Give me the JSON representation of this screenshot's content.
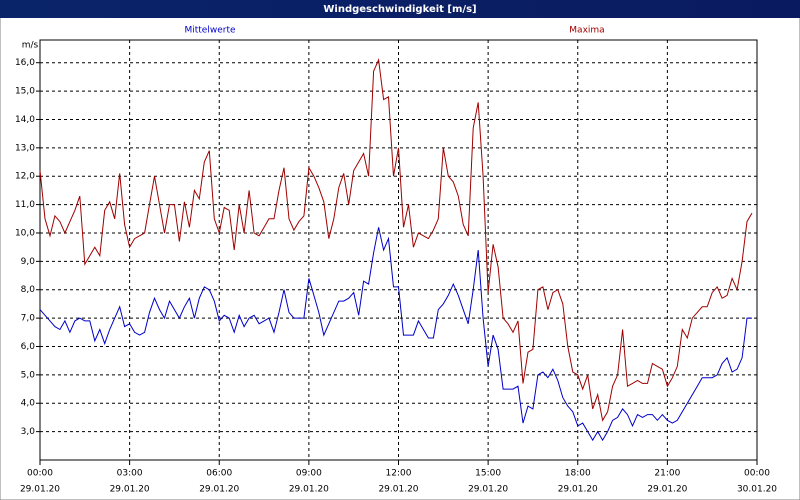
{
  "chart_data": {
    "type": "line",
    "title": "Windgeschwindigkeit [m/s]",
    "y_unit": "m/s",
    "x": [
      0,
      10,
      20,
      30,
      40,
      50,
      60,
      70,
      80,
      90,
      100,
      110,
      120,
      130,
      140,
      150,
      160,
      170,
      180,
      190,
      200,
      210,
      220,
      230,
      240,
      250,
      260,
      270,
      280,
      290,
      300,
      310,
      320,
      330,
      340,
      350,
      360,
      370,
      380,
      390,
      400,
      410,
      420,
      430,
      440,
      450,
      460,
      470,
      480,
      490,
      500,
      510,
      520,
      530,
      540,
      550,
      560,
      570,
      580,
      590,
      600,
      610,
      620,
      630,
      640,
      650,
      660,
      670,
      680,
      690,
      700,
      710,
      720,
      730,
      740,
      750,
      760,
      770,
      780,
      790,
      800,
      810,
      820,
      830,
      840,
      850,
      860,
      870,
      880,
      890,
      900,
      910,
      920,
      930,
      940,
      950,
      960,
      970,
      980,
      990,
      1000,
      1010,
      1020,
      1030,
      1040,
      1050,
      1060,
      1070,
      1080,
      1090,
      1100,
      1110,
      1120,
      1130,
      1140,
      1150,
      1160,
      1170,
      1180,
      1190,
      1200,
      1210,
      1220,
      1230,
      1240,
      1250,
      1260,
      1270,
      1280,
      1290,
      1300,
      1310,
      1320,
      1330,
      1340,
      1350,
      1360,
      1370,
      1380,
      1390,
      1400,
      1410,
      1420,
      1430
    ],
    "series": [
      {
        "name": "Mittelwerte",
        "color": "#0000c8",
        "values": [
          7.3,
          7.1,
          6.9,
          6.7,
          6.6,
          6.9,
          6.5,
          6.9,
          7.0,
          6.9,
          6.9,
          6.2,
          6.6,
          6.1,
          6.6,
          7.0,
          7.4,
          6.7,
          6.8,
          6.5,
          6.4,
          6.5,
          7.2,
          7.7,
          7.3,
          7.0,
          7.6,
          7.3,
          7.0,
          7.4,
          7.7,
          7.0,
          7.7,
          8.1,
          8.0,
          7.6,
          6.9,
          7.1,
          7.0,
          6.5,
          7.1,
          6.7,
          7.0,
          7.1,
          6.8,
          6.9,
          7.0,
          6.5,
          7.2,
          8.0,
          7.2,
          7.0,
          7.0,
          7.0,
          8.4,
          7.8,
          7.2,
          6.4,
          6.8,
          7.2,
          7.6,
          7.6,
          7.7,
          7.9,
          7.1,
          8.3,
          8.2,
          9.3,
          10.2,
          9.4,
          9.8,
          8.1,
          8.1,
          6.4,
          6.4,
          6.4,
          6.9,
          6.6,
          6.3,
          6.3,
          7.3,
          7.5,
          7.8,
          8.2,
          7.8,
          7.3,
          6.8,
          8.0,
          9.4,
          7.0,
          5.3,
          6.4,
          5.9,
          4.5,
          4.5,
          4.5,
          4.6,
          3.3,
          3.9,
          3.8,
          5.0,
          5.1,
          4.9,
          5.2,
          4.8,
          4.2,
          3.9,
          3.7,
          3.2,
          3.3,
          3.0,
          2.7,
          3.0,
          2.7,
          3.0,
          3.4,
          3.5,
          3.8,
          3.6,
          3.2,
          3.6,
          3.5,
          3.6,
          3.6,
          3.4,
          3.6,
          3.4,
          3.3,
          3.4,
          3.7,
          4.0,
          4.3,
          4.6,
          4.9,
          4.9,
          4.9,
          5.0,
          5.4,
          5.6,
          5.1,
          5.2,
          5.6,
          7.0,
          7.0
        ]
      },
      {
        "name": "Maxima",
        "color": "#a00000",
        "values": [
          12.2,
          10.5,
          9.9,
          10.6,
          10.4,
          10.0,
          10.4,
          10.8,
          11.3,
          8.9,
          9.2,
          9.5,
          9.2,
          10.8,
          11.1,
          10.5,
          12.1,
          10.3,
          9.5,
          9.8,
          9.9,
          10.0,
          11.0,
          12.0,
          11.0,
          10.0,
          11.0,
          11.0,
          9.7,
          11.1,
          10.2,
          11.5,
          11.2,
          12.5,
          12.9,
          10.5,
          10.0,
          10.9,
          10.8,
          9.4,
          11.0,
          10.0,
          11.5,
          10.0,
          9.9,
          10.2,
          10.5,
          10.5,
          11.5,
          12.3,
          10.5,
          10.1,
          10.4,
          10.6,
          12.3,
          12.0,
          11.6,
          11.1,
          9.8,
          10.5,
          11.6,
          12.1,
          11.0,
          12.2,
          12.5,
          12.8,
          12.0,
          15.7,
          16.1,
          14.7,
          14.8,
          12.0,
          13.0,
          10.2,
          11.0,
          9.5,
          10.0,
          9.9,
          9.8,
          10.1,
          10.5,
          13.0,
          12.0,
          11.8,
          11.3,
          10.3,
          9.9,
          13.7,
          14.6,
          12.0,
          7.9,
          9.6,
          8.8,
          7.0,
          6.8,
          6.5,
          6.9,
          4.7,
          5.8,
          5.9,
          8.0,
          8.1,
          7.3,
          7.9,
          8.0,
          7.5,
          6.0,
          5.1,
          5.0,
          4.5,
          5.0,
          3.8,
          4.3,
          3.4,
          3.7,
          4.6,
          5.0,
          6.6,
          4.6,
          4.7,
          4.8,
          4.7,
          4.7,
          5.4,
          5.3,
          5.2,
          4.6,
          4.9,
          5.3,
          6.6,
          6.3,
          7.0,
          7.2,
          7.4,
          7.4,
          7.9,
          8.1,
          7.7,
          7.8,
          8.4,
          8.0,
          9.0,
          10.4,
          10.7
        ]
      }
    ],
    "xlim": [
      0,
      1440
    ],
    "xticks": [
      {
        "value": 0,
        "label": "00:00",
        "date": "29.01.20"
      },
      {
        "value": 180,
        "label": "03:00",
        "date": "29.01.20"
      },
      {
        "value": 360,
        "label": "06:00",
        "date": "29.01.20"
      },
      {
        "value": 540,
        "label": "09:00",
        "date": "29.01.20"
      },
      {
        "value": 720,
        "label": "12:00",
        "date": "29.01.20"
      },
      {
        "value": 900,
        "label": "15:00",
        "date": "29.01.20"
      },
      {
        "value": 1080,
        "label": "18:00",
        "date": "29.01.20"
      },
      {
        "value": 1260,
        "label": "21:00",
        "date": "29.01.20"
      },
      {
        "value": 1440,
        "label": "00:00",
        "date": "30.01.20"
      }
    ],
    "ylim": [
      2.0,
      16.8
    ],
    "yticks": [
      {
        "value": 3,
        "label": "3,0"
      },
      {
        "value": 4,
        "label": "4,0"
      },
      {
        "value": 5,
        "label": "5,0"
      },
      {
        "value": 6,
        "label": "6,0"
      },
      {
        "value": 7,
        "label": "7,0"
      },
      {
        "value": 8,
        "label": "8,0"
      },
      {
        "value": 9,
        "label": "9,0"
      },
      {
        "value": 10,
        "label": "10,0"
      },
      {
        "value": 11,
        "label": "11,0"
      },
      {
        "value": 12,
        "label": "12,0"
      },
      {
        "value": 13,
        "label": "13,0"
      },
      {
        "value": 14,
        "label": "14,0"
      },
      {
        "value": 15,
        "label": "15,0"
      },
      {
        "value": 16,
        "label": "16,0"
      }
    ],
    "grid": true
  }
}
